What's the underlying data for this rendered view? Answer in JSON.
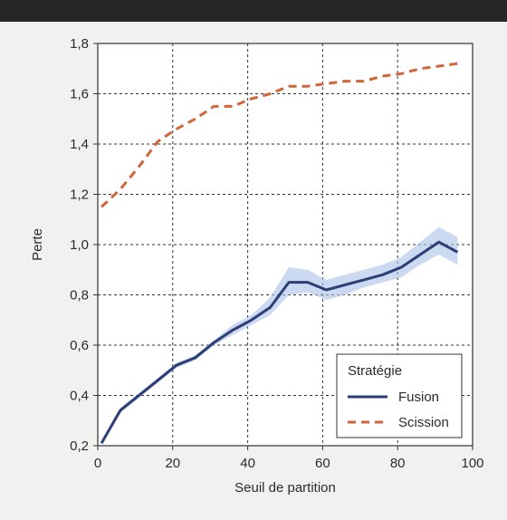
{
  "chart_data": {
    "type": "line",
    "title": "",
    "xlabel": "Seuil de partition",
    "ylabel": "Perte",
    "xlim": [
      0,
      100
    ],
    "ylim": [
      0.2,
      1.8
    ],
    "x_ticks": [
      "0",
      "20",
      "40",
      "60",
      "80",
      "100"
    ],
    "y_ticks": [
      "0,2",
      "0,4",
      "0,6",
      "0,8",
      "1,0",
      "1,2",
      "1,4",
      "1,6",
      "1,8"
    ],
    "grid": true,
    "legend": {
      "title": "Stratégie",
      "placement": "bottom-right"
    },
    "series": [
      {
        "name": "Fusion",
        "color": "#2c3e75",
        "style": "solid",
        "band_color": "#a9bfe8",
        "x": [
          1,
          6,
          11,
          16,
          21,
          26,
          31,
          36,
          41,
          46,
          51,
          56,
          61,
          66,
          71,
          76,
          81,
          86,
          91,
          96
        ],
        "y": [
          0.21,
          0.34,
          0.4,
          0.46,
          0.52,
          0.55,
          0.61,
          0.66,
          0.7,
          0.75,
          0.85,
          0.85,
          0.82,
          0.84,
          0.86,
          0.88,
          0.91,
          0.96,
          1.01,
          0.97
        ],
        "y_low": [
          0.2,
          0.33,
          0.39,
          0.45,
          0.51,
          0.54,
          0.6,
          0.64,
          0.68,
          0.72,
          0.8,
          0.81,
          0.78,
          0.8,
          0.83,
          0.85,
          0.87,
          0.92,
          0.96,
          0.92
        ],
        "y_high": [
          0.22,
          0.35,
          0.41,
          0.47,
          0.53,
          0.56,
          0.62,
          0.68,
          0.72,
          0.79,
          0.91,
          0.9,
          0.86,
          0.88,
          0.9,
          0.92,
          0.95,
          1.01,
          1.07,
          1.03
        ]
      },
      {
        "name": "Scission",
        "color": "#d2643a",
        "style": "dashed",
        "x": [
          1,
          6,
          11,
          16,
          21,
          26,
          31,
          36,
          41,
          46,
          51,
          56,
          61,
          66,
          71,
          76,
          81,
          86,
          91,
          96
        ],
        "y": [
          1.15,
          1.22,
          1.31,
          1.41,
          1.46,
          1.5,
          1.55,
          1.55,
          1.58,
          1.6,
          1.63,
          1.63,
          1.64,
          1.65,
          1.65,
          1.67,
          1.68,
          1.7,
          1.71,
          1.72
        ]
      }
    ]
  }
}
